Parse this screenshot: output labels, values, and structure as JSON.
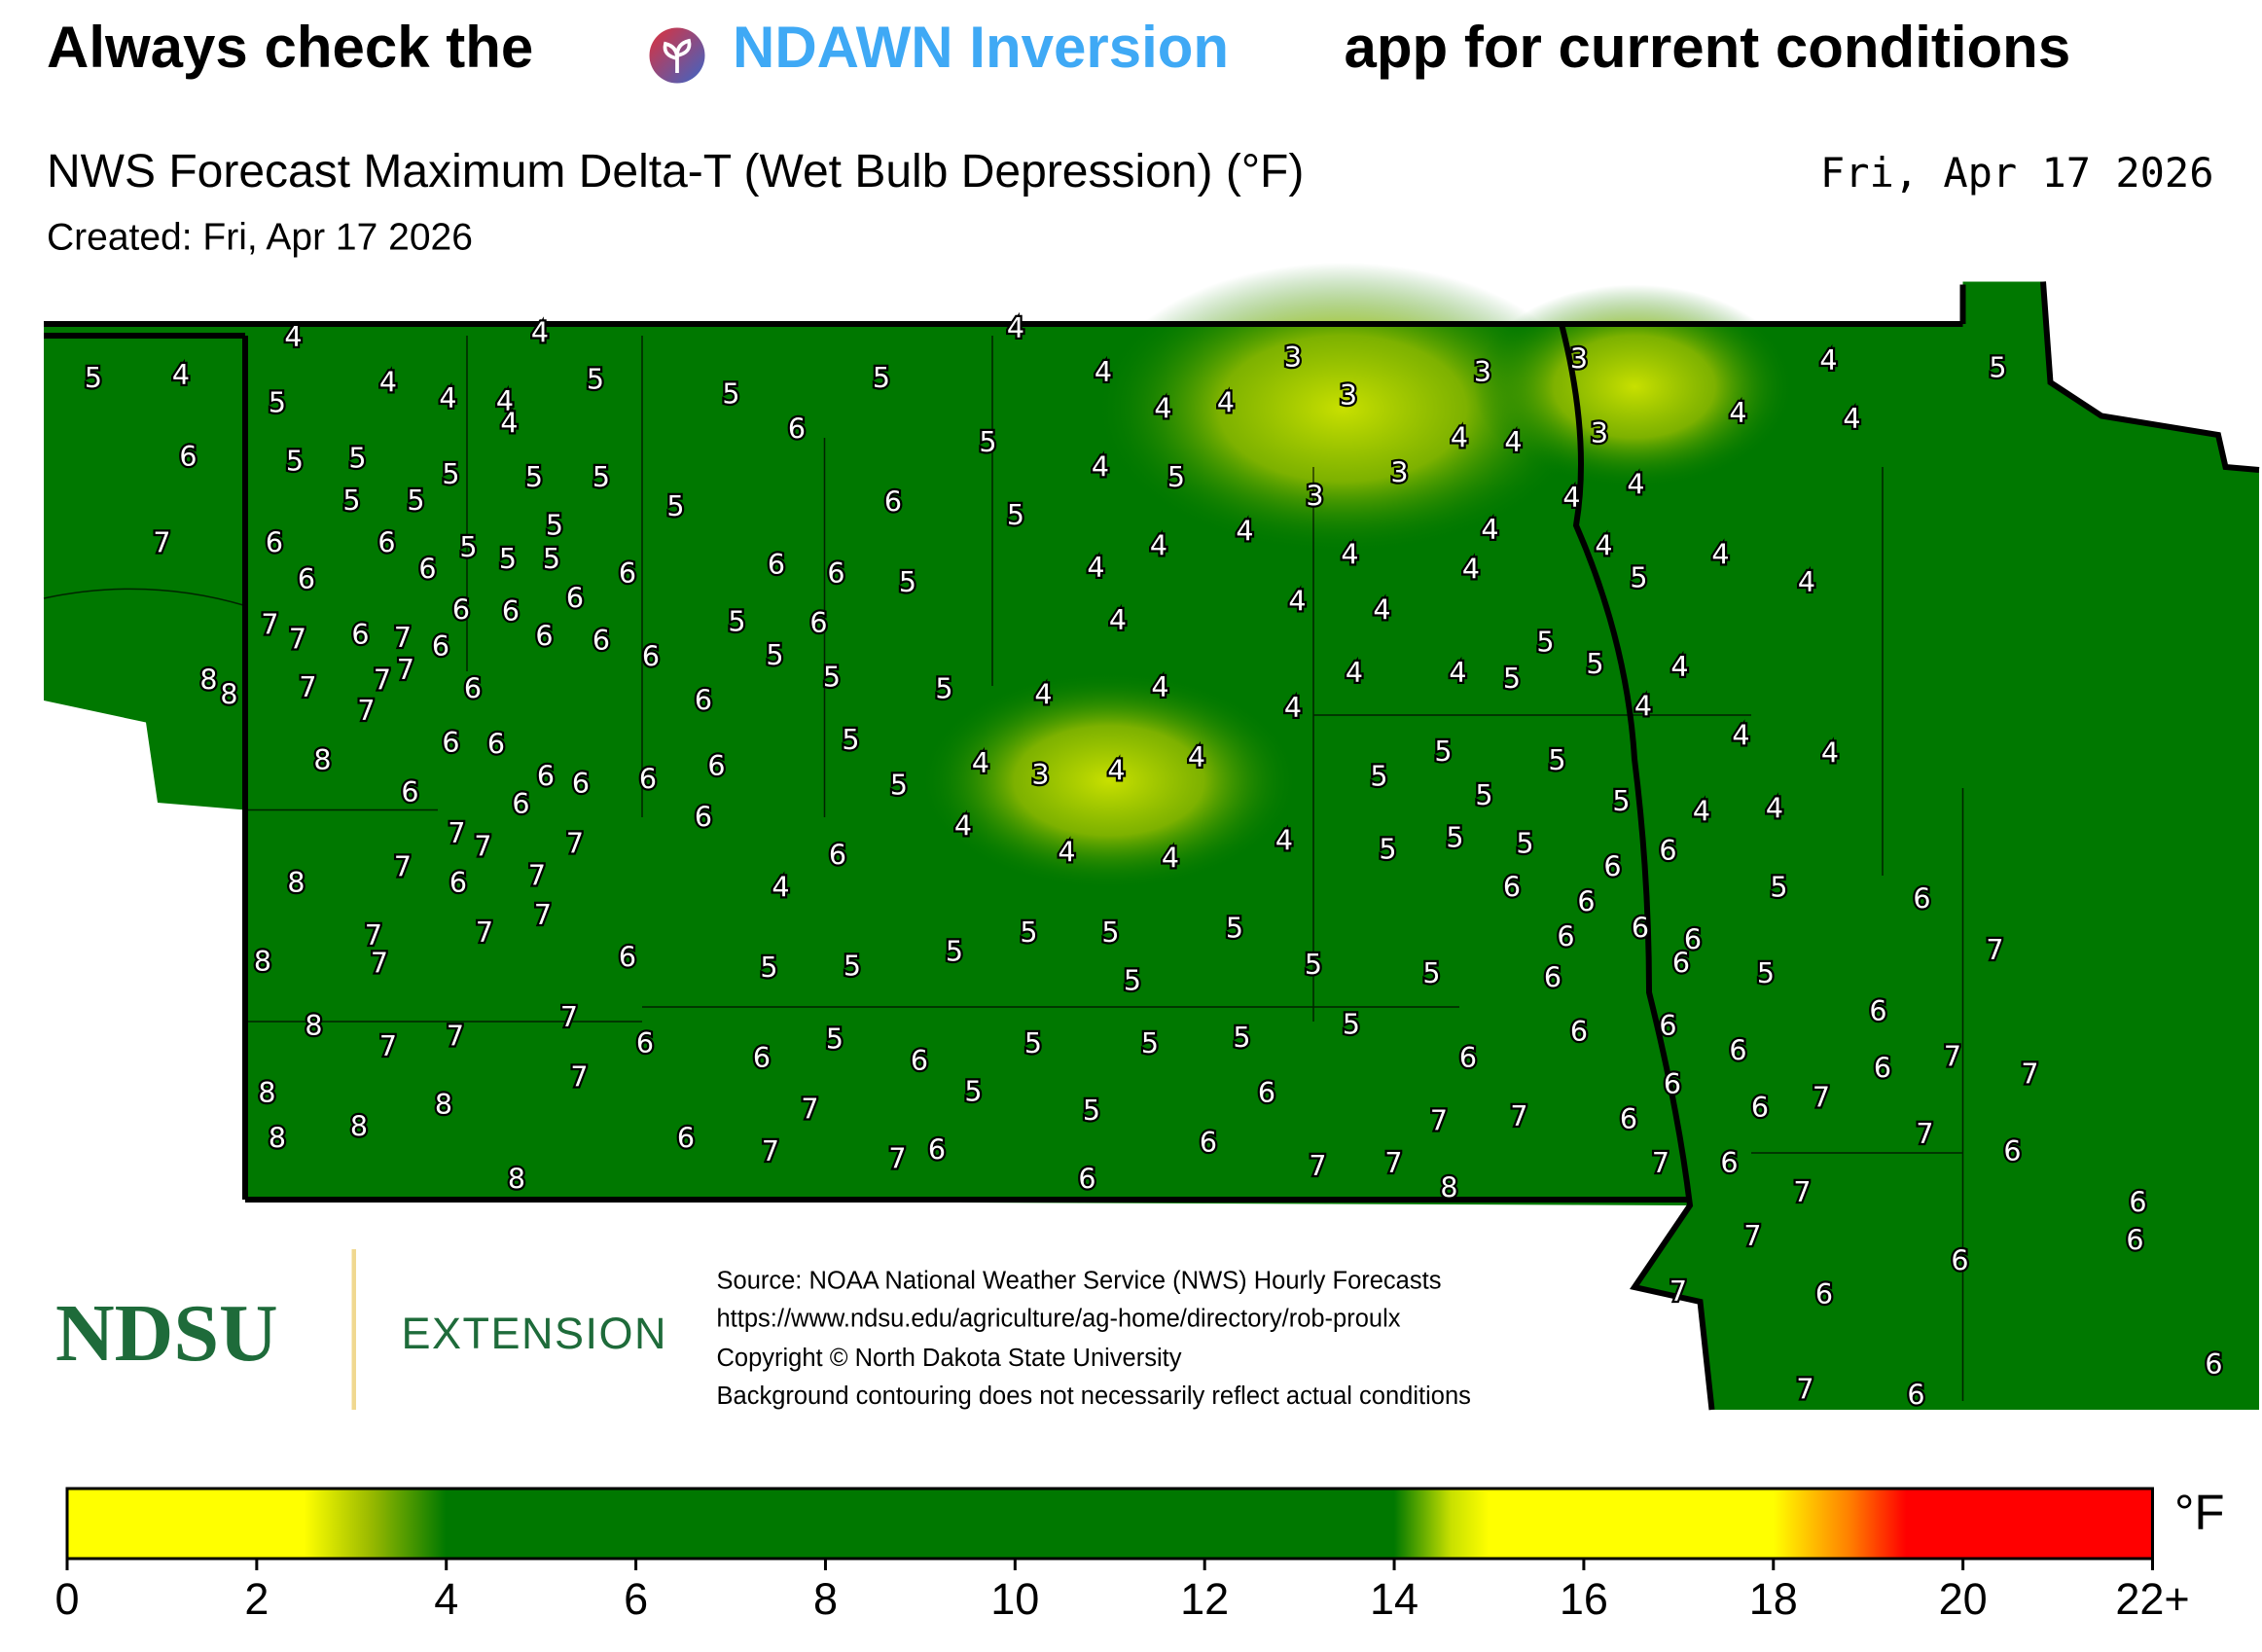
{
  "header": {
    "title_start": "Always check the",
    "title_link": "NDAWN Inversion",
    "title_end": "app for current conditions",
    "subtitle": "NWS Forecast Maximum Delta-T (Wet Bulb Depression) (°F)",
    "date": "Fri, Apr 17 2026",
    "created": "Created: Fri, Apr 17 2026"
  },
  "map": {
    "labels": [
      4,
      4,
      4,
      5,
      4,
      5,
      4,
      4,
      4,
      4,
      5,
      5,
      5,
      4,
      3,
      3,
      3,
      3,
      4,
      5,
      4,
      4,
      6,
      5,
      4,
      4,
      3,
      4,
      4,
      6,
      5,
      5,
      5,
      5,
      5,
      4,
      5,
      3,
      3,
      4,
      4,
      5,
      5,
      5,
      6,
      5,
      5,
      4,
      4,
      7,
      6,
      6,
      5,
      5,
      5,
      4,
      4,
      4,
      6,
      6,
      6,
      6,
      6,
      5,
      4,
      4,
      4,
      5,
      4,
      6,
      6,
      6,
      4,
      4,
      7,
      7,
      6,
      7,
      6,
      6,
      6,
      6,
      5,
      6,
      4,
      5,
      5,
      8,
      8,
      7,
      7,
      7,
      7,
      6,
      6,
      5,
      5,
      4,
      4,
      4,
      4,
      4,
      5,
      5,
      4,
      4,
      6,
      6,
      5,
      4,
      4,
      8,
      6,
      6,
      6,
      6,
      4,
      3,
      4,
      4,
      5,
      5,
      5,
      6,
      6,
      5,
      5,
      5,
      4,
      4,
      6,
      4,
      7,
      7,
      7,
      6,
      4,
      4,
      4,
      5,
      5,
      5,
      6,
      6,
      8,
      7,
      6,
      7,
      4,
      5,
      6,
      6,
      6,
      7,
      7,
      7,
      7,
      8,
      6,
      5,
      5,
      5,
      5,
      5,
      5,
      6,
      6,
      6,
      6,
      7,
      5,
      5,
      6,
      5,
      5,
      8,
      7,
      7,
      7,
      6,
      6,
      5,
      6,
      5,
      5,
      5,
      5,
      6,
      6,
      6,
      6,
      6,
      7,
      6,
      7,
      8,
      7,
      5,
      6,
      6,
      8,
      7,
      5,
      7,
      6,
      7,
      7,
      6,
      8,
      8,
      6,
      7,
      6,
      7,
      6,
      7,
      6,
      7,
      7,
      7,
      6,
      8,
      6,
      8,
      7,
      6,
      7,
      6,
      6,
      7,
      6,
      6,
      7,
      6
    ],
    "source": [
      "Source: NOAA National Weather Service (NWS) Hourly Forecasts",
      "https://www.ndsu.edu/agriculture/ag-home/directory/rob-proulx",
      "Copyright © North Dakota State University",
      "Background contouring does not necessarily reflect actual conditions"
    ],
    "logo": {
      "name": "NDSU",
      "unit": "EXTENSION"
    }
  },
  "colorbar": {
    "unit": "°F",
    "range": [
      0,
      22
    ],
    "ticks": [
      0,
      2,
      4,
      6,
      8,
      10,
      12,
      14,
      16,
      18,
      20,
      {
        "value": 22,
        "label": "22+"
      }
    ],
    "stops": [
      {
        "value": 0,
        "color": "#ffff00"
      },
      {
        "value": 2.5,
        "color": "#ffff00"
      },
      {
        "value": 3.2,
        "color": "#9aba00"
      },
      {
        "value": 4,
        "color": "#007800"
      },
      {
        "value": 14,
        "color": "#007800"
      },
      {
        "value": 14.6,
        "color": "#c8e000"
      },
      {
        "value": 15,
        "color": "#ffff00"
      },
      {
        "value": 18,
        "color": "#ffff00"
      },
      {
        "value": 18.8,
        "color": "#ff8000"
      },
      {
        "value": 19.4,
        "color": "#ff0000"
      },
      {
        "value": 22,
        "color": "#ff0000"
      }
    ]
  }
}
